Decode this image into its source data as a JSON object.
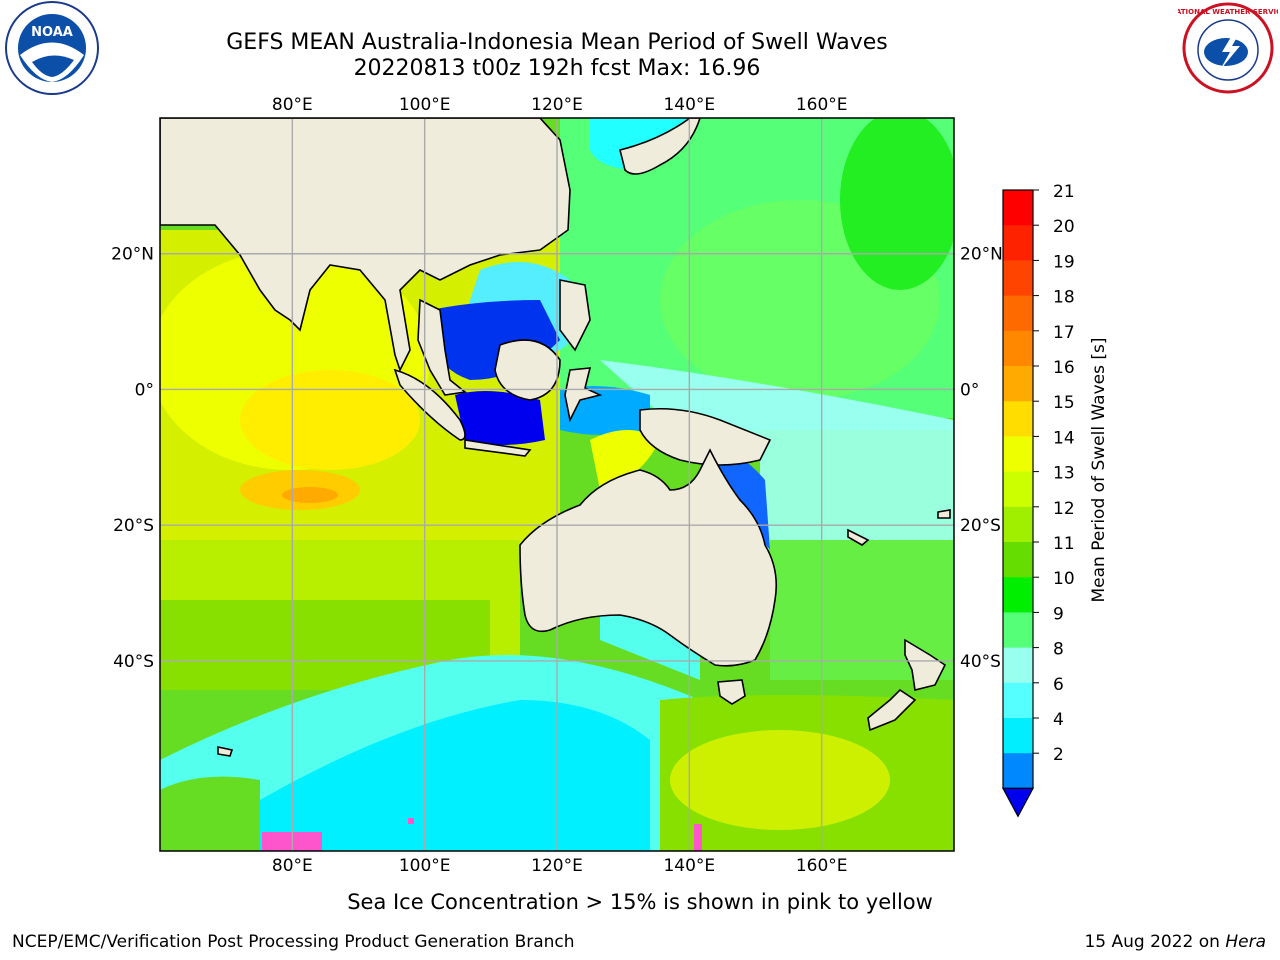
{
  "title_line1": "GEFS MEAN Australia-Indonesia Mean Period of Swell Waves",
  "title_line2": "20220813 t00z 192h fcst   Max: 16.96",
  "logos": {
    "left": "NOAA",
    "right": "NATIONAL WEATHER SERVICE"
  },
  "map": {
    "lon_range": [
      60,
      180
    ],
    "lat_range": [
      -68,
      40
    ],
    "lon_ticks": [
      "80°E",
      "100°E",
      "120°E",
      "140°E",
      "160°E"
    ],
    "lat_ticks": [
      "20°N",
      "0°",
      "20°S",
      "40°S"
    ],
    "grid": true
  },
  "colorbar": {
    "label": "Mean Period of Swell Waves [s]",
    "ticks": [
      "21",
      "20",
      "19",
      "18",
      "17",
      "16",
      "15",
      "14",
      "13",
      "12",
      "11",
      "10",
      "9",
      "8",
      "6",
      "4",
      "2"
    ],
    "colors": [
      "#ff0000",
      "#ff2200",
      "#ff4400",
      "#ff6a00",
      "#ff8800",
      "#ffaa00",
      "#ffdd00",
      "#eeff00",
      "#ccff00",
      "#a0ee00",
      "#66dd00",
      "#00ee00",
      "#55ff77",
      "#99ffee",
      "#55ffff",
      "#00eeff",
      "#0088ff"
    ],
    "extend_color": "#0000ee"
  },
  "ice_note": "Sea Ice Concentration > 15% is shown in pink to yellow",
  "footer_left": "NCEP/EMC/Verification Post Processing Product Generation Branch",
  "footer_date": "15 Aug 2022 on",
  "footer_host": "Hera"
}
